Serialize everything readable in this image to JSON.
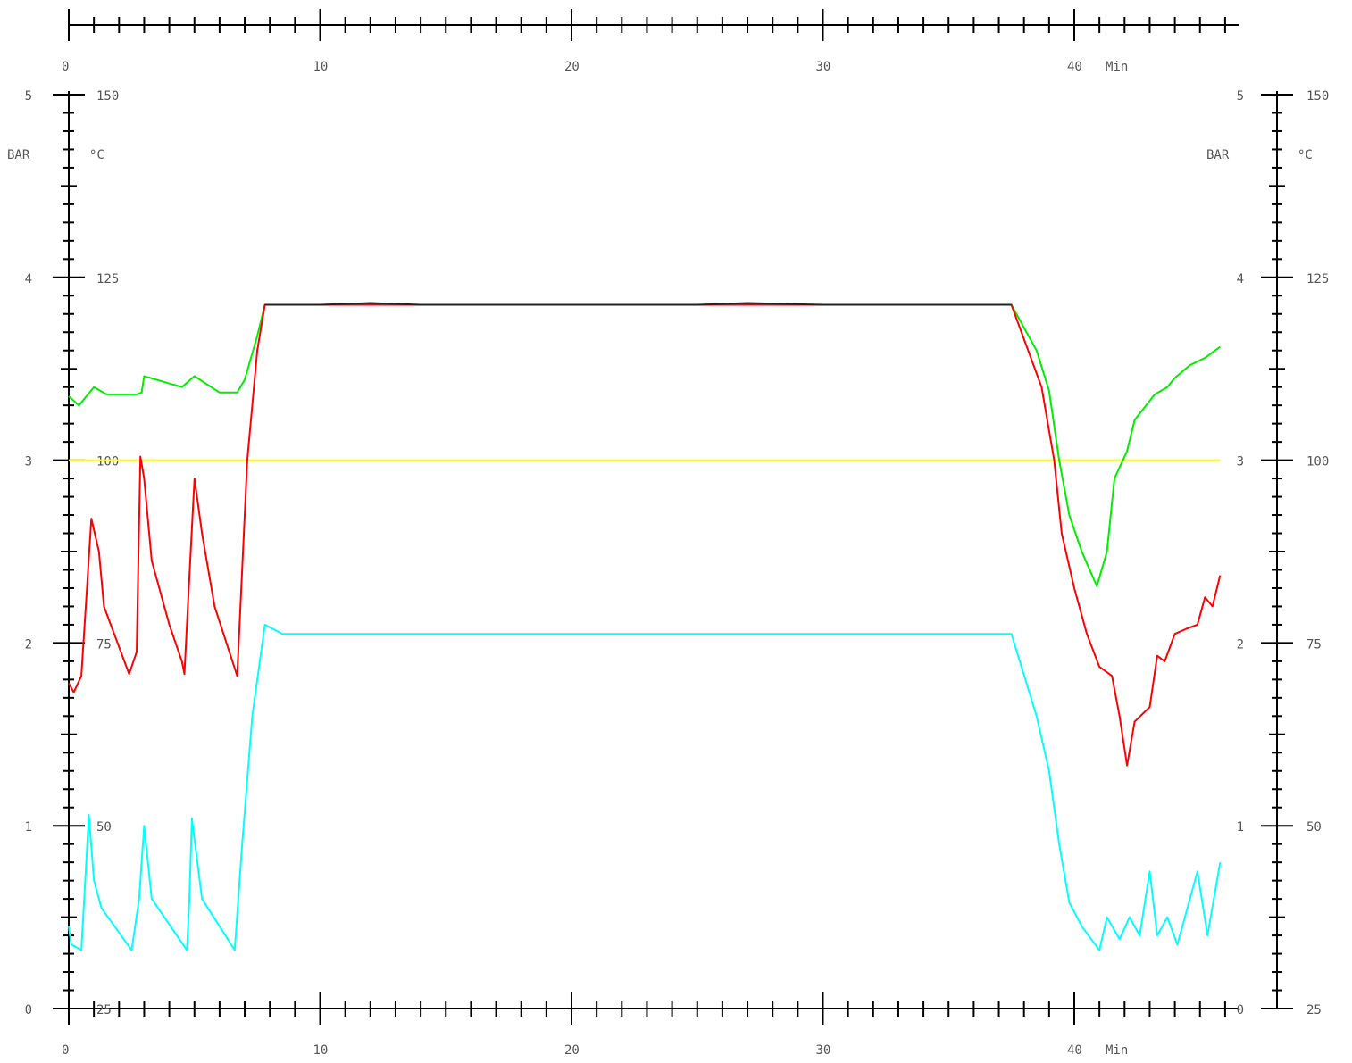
{
  "chart_data": {
    "type": "line",
    "x_axis": {
      "range": [
        0,
        46
      ],
      "unit": "Min",
      "ticks": [
        "0",
        "10",
        "20",
        "30",
        "40"
      ],
      "minor_step": 1,
      "positions": [
        "top",
        "bottom"
      ]
    },
    "pressure_axis": {
      "unit": "BAR",
      "range": [
        0,
        5
      ],
      "ticks": [
        "0",
        "1",
        "2",
        "3",
        "4",
        "5"
      ],
      "positions": [
        "left",
        "right"
      ]
    },
    "temperature_axis": {
      "unit": "°C",
      "range": [
        25,
        150
      ],
      "ticks": [
        "25",
        "50",
        "75",
        "100",
        "125",
        "150"
      ],
      "positions": [
        "left",
        "right"
      ]
    },
    "grid": false,
    "series": [
      {
        "color": "#ffff00",
        "axis": "temperature",
        "points": [
          [
            0,
            100
          ],
          [
            5,
            100
          ],
          [
            10,
            100
          ],
          [
            15,
            100
          ],
          [
            20,
            100
          ],
          [
            25,
            100
          ],
          [
            30,
            100
          ],
          [
            35,
            100
          ],
          [
            40,
            100
          ],
          [
            45.8,
            100
          ]
        ]
      },
      {
        "color": "#00ee00",
        "axis": "pressure",
        "points": [
          [
            0,
            3.35
          ],
          [
            0.4,
            3.3
          ],
          [
            1,
            3.4
          ],
          [
            1.5,
            3.36
          ],
          [
            2.7,
            3.36
          ],
          [
            2.9,
            3.37
          ],
          [
            3.0,
            3.46
          ],
          [
            4.5,
            3.4
          ],
          [
            5.0,
            3.46
          ],
          [
            6.0,
            3.37
          ],
          [
            6.7,
            3.37
          ],
          [
            7.0,
            3.44
          ],
          [
            7.5,
            3.68
          ],
          [
            7.8,
            3.85
          ],
          [
            37.5,
            3.85
          ],
          [
            38.5,
            3.6
          ],
          [
            39.0,
            3.38
          ],
          [
            39.4,
            3.0
          ],
          [
            39.8,
            2.7
          ],
          [
            40.3,
            2.5
          ],
          [
            40.9,
            2.31
          ],
          [
            41.3,
            2.5
          ],
          [
            41.6,
            2.9
          ],
          [
            42.1,
            3.05
          ],
          [
            42.4,
            3.22
          ],
          [
            43.2,
            3.36
          ],
          [
            43.7,
            3.4
          ],
          [
            44.0,
            3.45
          ],
          [
            44.6,
            3.52
          ],
          [
            45.2,
            3.56
          ],
          [
            45.8,
            3.62
          ]
        ]
      },
      {
        "color": "#ff0000",
        "axis": "pressure",
        "points": [
          [
            0,
            1.78
          ],
          [
            0.2,
            1.73
          ],
          [
            0.5,
            1.82
          ],
          [
            0.9,
            2.68
          ],
          [
            1.2,
            2.5
          ],
          [
            1.4,
            2.2
          ],
          [
            2.4,
            1.83
          ],
          [
            2.7,
            1.95
          ],
          [
            2.85,
            3.02
          ],
          [
            3.0,
            2.9
          ],
          [
            3.3,
            2.45
          ],
          [
            4.0,
            2.1
          ],
          [
            4.5,
            1.9
          ],
          [
            4.6,
            1.83
          ],
          [
            4.7,
            2.1
          ],
          [
            5.0,
            2.9
          ],
          [
            5.3,
            2.6
          ],
          [
            5.8,
            2.2
          ],
          [
            6.7,
            1.82
          ],
          [
            7.1,
            3.0
          ],
          [
            7.5,
            3.6
          ],
          [
            7.8,
            3.85
          ],
          [
            37.5,
            3.85
          ],
          [
            38.7,
            3.4
          ],
          [
            39.2,
            3.0
          ],
          [
            39.5,
            2.6
          ],
          [
            40.0,
            2.3
          ],
          [
            40.5,
            2.05
          ],
          [
            41.0,
            1.87
          ],
          [
            41.5,
            1.82
          ],
          [
            41.8,
            1.6
          ],
          [
            42.1,
            1.33
          ],
          [
            42.4,
            1.57
          ],
          [
            43.0,
            1.65
          ],
          [
            43.3,
            1.93
          ],
          [
            43.6,
            1.9
          ],
          [
            44.0,
            2.05
          ],
          [
            44.5,
            2.08
          ],
          [
            44.9,
            2.1
          ],
          [
            45.2,
            2.25
          ],
          [
            45.5,
            2.2
          ],
          [
            45.8,
            2.37
          ]
        ]
      },
      {
        "color": "#00ffff",
        "axis": "pressure",
        "points": [
          [
            0,
            0.45
          ],
          [
            0.1,
            0.35
          ],
          [
            0.5,
            0.32
          ],
          [
            0.8,
            1.06
          ],
          [
            1.0,
            0.7
          ],
          [
            1.3,
            0.55
          ],
          [
            2.5,
            0.32
          ],
          [
            2.8,
            0.6
          ],
          [
            3.0,
            1.0
          ],
          [
            3.3,
            0.6
          ],
          [
            4.7,
            0.32
          ],
          [
            4.8,
            0.6
          ],
          [
            4.9,
            1.04
          ],
          [
            5.3,
            0.6
          ],
          [
            6.6,
            0.32
          ],
          [
            6.9,
            0.9
          ],
          [
            7.3,
            1.6
          ],
          [
            7.8,
            2.1
          ],
          [
            8.5,
            2.05
          ],
          [
            37.5,
            2.05
          ],
          [
            38.5,
            1.6
          ],
          [
            39.0,
            1.3
          ],
          [
            39.4,
            0.9
          ],
          [
            39.8,
            0.58
          ],
          [
            40.3,
            0.45
          ],
          [
            41.0,
            0.32
          ],
          [
            41.3,
            0.5
          ],
          [
            41.8,
            0.38
          ],
          [
            42.2,
            0.5
          ],
          [
            42.6,
            0.4
          ],
          [
            43.0,
            0.75
          ],
          [
            43.3,
            0.4
          ],
          [
            43.7,
            0.5
          ],
          [
            44.1,
            0.35
          ],
          [
            44.5,
            0.55
          ],
          [
            44.9,
            0.75
          ],
          [
            45.3,
            0.4
          ],
          [
            45.8,
            0.8
          ]
        ]
      },
      {
        "color": "#222222",
        "axis": "pressure",
        "points": [
          [
            7.8,
            3.85
          ],
          [
            8.5,
            3.85
          ],
          [
            10,
            3.85
          ],
          [
            12,
            3.86
          ],
          [
            14,
            3.85
          ],
          [
            16,
            3.85
          ],
          [
            20,
            3.85
          ],
          [
            25,
            3.85
          ],
          [
            27,
            3.86
          ],
          [
            30,
            3.85
          ],
          [
            35,
            3.85
          ],
          [
            37.5,
            3.85
          ]
        ]
      }
    ]
  }
}
